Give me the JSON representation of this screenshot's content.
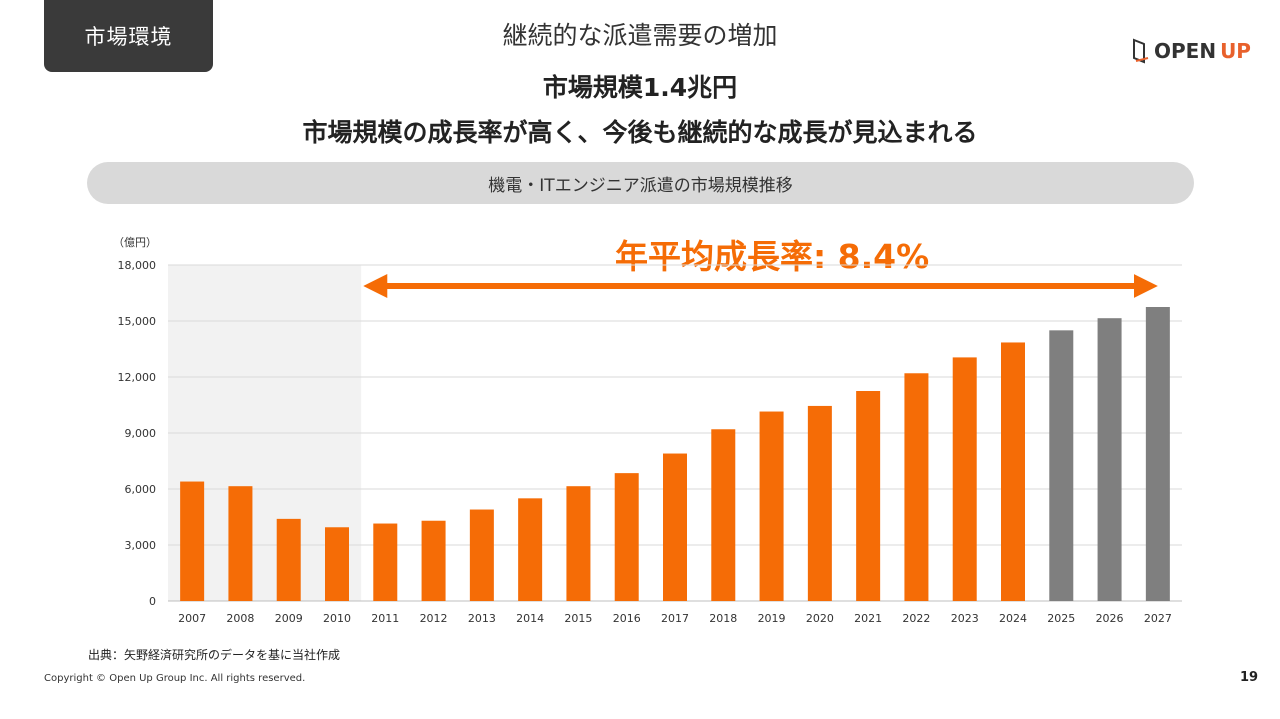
{
  "slide": {
    "tag": "市場環境",
    "section_title": "継続的な派遣需要の増加",
    "logo_open": "OPEN",
    "logo_up": "UP",
    "headline1": "市場規模1.4兆円",
    "headline2": "市場規模の成長率が高く、今後も継続的な成長が見込まれる",
    "pill_label": "機電・ITエンジニア派遣の市場規模推移",
    "unit_label": "（億円）",
    "cagr_label": "年平均成長率: 8.4%",
    "source": "出典：矢野経済研究所のデータを基に当社作成",
    "copyright": "Copyright © Open Up Group Inc. All rights reserved.",
    "page_number": "19"
  },
  "colors": {
    "actual": "#f56c06",
    "forecast": "#7f7f7f",
    "shade": "#f2f2f2",
    "grid": "#d9d9d9"
  },
  "chart_data": {
    "type": "bar",
    "categories": [
      "2007",
      "2008",
      "2009",
      "2010",
      "2011",
      "2012",
      "2013",
      "2014",
      "2015",
      "2016",
      "2017",
      "2018",
      "2019",
      "2020",
      "2021",
      "2022",
      "2023",
      "2024",
      "2025",
      "2026",
      "2027"
    ],
    "values": [
      6400,
      6150,
      4400,
      3950,
      4150,
      4300,
      4900,
      5500,
      6150,
      6850,
      7900,
      9200,
      10150,
      10450,
      11250,
      12200,
      13050,
      13850,
      14500,
      15150,
      15750
    ],
    "forecast_from": "2025",
    "shaded_categories": [
      "2007",
      "2008",
      "2009",
      "2010"
    ],
    "ylim": [
      0,
      18000
    ],
    "yticks": [
      0,
      3000,
      6000,
      9000,
      12000,
      15000,
      18000
    ],
    "ytick_labels": [
      "0",
      "3,000",
      "6,000",
      "9,000",
      "12,000",
      "15,000",
      "18,000"
    ],
    "ylabel": "（億円）",
    "annotation": "年平均成長率: 8.4%",
    "annotation_span": [
      "2011",
      "2027"
    ],
    "grid": true
  }
}
